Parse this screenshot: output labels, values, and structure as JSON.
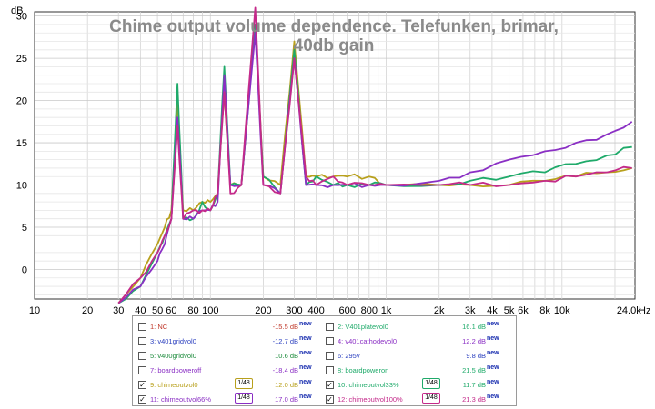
{
  "chart_data": {
    "type": "line",
    "title": "Chime output volume dependence.  Telefunken, brimar,\n40db gain",
    "ylabel": "dB",
    "xlabel_unit": "Hz",
    "x_scale": "log",
    "xlim": [
      10,
      26000
    ],
    "ylim": [
      -3.5,
      30.5
    ],
    "grid": true,
    "x_tick_labels": [
      "10",
      "20",
      "30",
      "40",
      "50",
      "60",
      "80",
      "100",
      "200",
      "300",
      "400",
      "600",
      "800",
      "1k",
      "2k",
      "3k",
      "4k",
      "5k",
      "6k",
      "8k",
      "10k",
      "24.0k"
    ],
    "x_tick_values": [
      10,
      20,
      30,
      40,
      50,
      60,
      80,
      100,
      200,
      300,
      400,
      600,
      800,
      1000,
      2000,
      3000,
      4000,
      5000,
      6000,
      8000,
      10000,
      24000
    ],
    "y_tick_labels": [
      "0",
      "5",
      "10",
      "15",
      "20",
      "25",
      "30"
    ],
    "y_tick_values": [
      0,
      5,
      10,
      15,
      20,
      25,
      30
    ],
    "series": [
      {
        "name": "chimeoutvol0",
        "color": "#b8a01c",
        "visible": true,
        "x": [
          30,
          40,
          50,
          55,
          60,
          65,
          70,
          80,
          90,
          100,
          110,
          120,
          130,
          150,
          180,
          200,
          250,
          300,
          350,
          400,
          500,
          600,
          800,
          1000,
          2000,
          3000,
          5000,
          8000,
          12000,
          18000,
          25000
        ],
        "y": [
          -4,
          -1,
          3,
          5,
          7,
          20,
          7,
          7,
          8,
          8,
          9,
          21,
          10,
          10,
          29,
          11,
          10,
          27,
          11,
          11,
          11,
          11,
          11,
          10,
          10,
          10,
          10,
          10.5,
          11,
          11.5,
          12
        ]
      },
      {
        "name": "chimeoutvol33%",
        "color": "#1faa6a",
        "visible": true,
        "x": [
          30,
          40,
          50,
          55,
          60,
          65,
          70,
          80,
          90,
          100,
          110,
          120,
          130,
          150,
          180,
          200,
          250,
          300,
          350,
          400,
          500,
          600,
          800,
          1000,
          2000,
          3000,
          5000,
          8000,
          12000,
          18000,
          25000
        ],
        "y": [
          -4,
          -2,
          2,
          4,
          6,
          22,
          6,
          6,
          8,
          7,
          9,
          24,
          10,
          10,
          29,
          11,
          9,
          26,
          10,
          11,
          10,
          10,
          10,
          10,
          10,
          10.5,
          11,
          11.5,
          12.5,
          13.5,
          14.5
        ]
      },
      {
        "name": "chimeoutvol66%",
        "color": "#8a2fc4",
        "visible": true,
        "x": [
          30,
          40,
          50,
          55,
          60,
          65,
          70,
          80,
          90,
          100,
          110,
          120,
          130,
          150,
          180,
          200,
          250,
          300,
          350,
          400,
          500,
          600,
          800,
          1000,
          2000,
          3000,
          5000,
          8000,
          12000,
          18000,
          25000
        ],
        "y": [
          -4,
          -2,
          1,
          3,
          6,
          18,
          6,
          6,
          7,
          7,
          8,
          23,
          10,
          10,
          28,
          10,
          9,
          25,
          10,
          10,
          10,
          10,
          10,
          10,
          10.5,
          11.5,
          13,
          14,
          15,
          16,
          17.5
        ]
      },
      {
        "name": "chimeoutvol100%",
        "color": "#c42a8a",
        "visible": true,
        "x": [
          30,
          40,
          50,
          55,
          60,
          65,
          70,
          80,
          90,
          100,
          110,
          120,
          130,
          150,
          180,
          200,
          250,
          300,
          350,
          400,
          500,
          600,
          800,
          1000,
          2000,
          3000,
          5000,
          8000,
          12000,
          18000,
          25000
        ],
        "y": [
          -4,
          -1,
          2,
          4,
          6,
          17,
          6,
          7,
          7,
          7,
          9,
          21,
          9,
          10,
          31,
          10,
          9,
          25,
          11,
          10,
          11,
          10,
          10,
          10,
          10,
          10,
          10,
          10.5,
          11,
          11.5,
          12
        ]
      }
    ]
  },
  "legend": {
    "items": [
      {
        "label": "1: NC",
        "value": "-15.5 dB",
        "new": "new",
        "checked": false,
        "color": "#c0392b",
        "box": ""
      },
      {
        "label": "2: V401platevol0",
        "value": "16.1 dB",
        "new": "new",
        "checked": false,
        "color": "#1faa6a",
        "box": ""
      },
      {
        "label": "3: v401gridvol0",
        "value": "-12.7 dB",
        "new": "new",
        "checked": false,
        "color": "#2a3fbf",
        "box": ""
      },
      {
        "label": "4: v401cathodevol0",
        "value": "12.2 dB",
        "new": "new",
        "checked": false,
        "color": "#8a2fc4",
        "box": ""
      },
      {
        "label": "5: v400gridvol0",
        "value": "10.6 dB",
        "new": "new",
        "checked": false,
        "color": "#1a8a3a",
        "box": ""
      },
      {
        "label": "6: 295v",
        "value": "9.8 dB",
        "new": "new",
        "checked": false,
        "color": "#2a3fbf",
        "box": ""
      },
      {
        "label": "7: boardpoweroff",
        "value": "-18.4 dB",
        "new": "new",
        "checked": false,
        "color": "#8a2fc4",
        "box": ""
      },
      {
        "label": "8: boardpoweron",
        "value": "21.5 dB",
        "new": "new",
        "checked": false,
        "color": "#1faa6a",
        "box": ""
      },
      {
        "label": "9: chimeoutvol0",
        "value": "12.0 dB",
        "new": "new",
        "checked": true,
        "color": "#b8a01c",
        "box": "1/48"
      },
      {
        "label": "10: chimeoutvol33%",
        "value": "11.7 dB",
        "new": "new",
        "checked": true,
        "color": "#1faa6a",
        "box": "1/48"
      },
      {
        "label": "11: chimeoutvol66%",
        "value": "17.0 dB",
        "new": "new",
        "checked": true,
        "color": "#8a2fc4",
        "box": "1/48"
      },
      {
        "label": "12: chimeoutvol100%",
        "value": "21.3 dB",
        "new": "new",
        "checked": true,
        "color": "#c42a8a",
        "box": "1/48"
      }
    ]
  }
}
